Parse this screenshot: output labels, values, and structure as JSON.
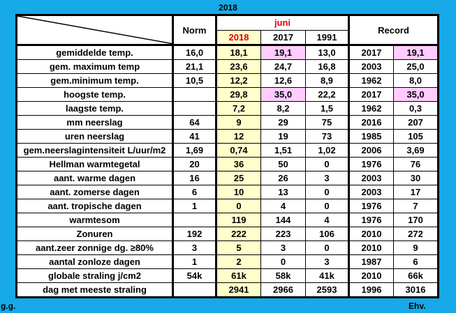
{
  "title": "2018",
  "header": {
    "norm": "Norm",
    "month": "juni",
    "years": [
      "2018",
      "2017",
      "1991"
    ],
    "record": "Record"
  },
  "rows": [
    {
      "label": "gemiddelde temp.",
      "norm": "16,0",
      "y2018": "18,1",
      "y2017": "19,1",
      "y1991": "13,0",
      "rec_year": "2017",
      "rec_val": "19,1"
    },
    {
      "label": "gem. maximum temp",
      "norm": "21,1",
      "y2018": "23,6",
      "y2017": "24,7",
      "y1991": "16,8",
      "rec_year": "2003",
      "rec_val": "25,0"
    },
    {
      "label": "gem.minimum temp.",
      "norm": "10,5",
      "y2018": "12,2",
      "y2017": "12,6",
      "y1991": "8,9",
      "rec_year": "1962",
      "rec_val": "8,0"
    },
    {
      "label": "hoogste temp.",
      "norm": "",
      "y2018": "29,8",
      "y2017": "35,0",
      "y1991": "22,2",
      "rec_year": "2017",
      "rec_val": "35,0"
    },
    {
      "label": "laagste temp.",
      "norm": "",
      "y2018": "7,2",
      "y2017": "8,2",
      "y1991": "1,5",
      "rec_year": "1962",
      "rec_val": "0,3"
    },
    {
      "label": "mm neerslag",
      "norm": "64",
      "y2018": "9",
      "y2017": "29",
      "y1991": "75",
      "rec_year": "2016",
      "rec_val": "207"
    },
    {
      "label": "uren neerslag",
      "norm": "41",
      "y2018": "12",
      "y2017": "19",
      "y1991": "73",
      "rec_year": "1985",
      "rec_val": "105"
    },
    {
      "label": "gem.neerslagintensiteit L/uur/m2",
      "norm": "1,69",
      "y2018": "0,74",
      "y2017": "1,51",
      "y1991": "1,02",
      "rec_year": "2006",
      "rec_val": "3,69"
    },
    {
      "label": "Hellman warmtegetal",
      "norm": "20",
      "y2018": "36",
      "y2017": "50",
      "y1991": "0",
      "rec_year": "1976",
      "rec_val": "76"
    },
    {
      "label": "aant. warme dagen",
      "norm": "16",
      "y2018": "25",
      "y2017": "26",
      "y1991": "3",
      "rec_year": "2003",
      "rec_val": "30"
    },
    {
      "label": "aant. zomerse dagen",
      "norm": "6",
      "y2018": "10",
      "y2017": "13",
      "y1991": "0",
      "rec_year": "2003",
      "rec_val": "17"
    },
    {
      "label": "aant. tropische dagen",
      "norm": "1",
      "y2018": "0",
      "y2017": "4",
      "y1991": "0",
      "rec_year": "1976",
      "rec_val": "7"
    },
    {
      "label": "warmtesom",
      "norm": "",
      "y2018": "119",
      "y2017": "144",
      "y1991": "4",
      "rec_year": "1976",
      "rec_val": "170"
    },
    {
      "label": "Zonuren",
      "norm": "192",
      "y2018": "222",
      "y2017": "223",
      "y1991": "106",
      "rec_year": "2010",
      "rec_val": "272"
    },
    {
      "label": "aant.zeer zonnige dg. ≥80%",
      "norm": "3",
      "y2018": "5",
      "y2017": "3",
      "y1991": "0",
      "rec_year": "2010",
      "rec_val": "9"
    },
    {
      "label": "aantal zonloze dagen",
      "norm": "1",
      "y2018": "2",
      "y2017": "0",
      "y1991": "3",
      "rec_year": "1987",
      "rec_val": "6"
    },
    {
      "label": "globale straling j/cm2",
      "norm": "54k",
      "y2018": "61k",
      "y2017": "58k",
      "y1991": "41k",
      "rec_year": "2010",
      "rec_val": "66k"
    },
    {
      "label": "dag met meeste straling",
      "norm": "",
      "y2018": "2941",
      "y2017": "2966",
      "y1991": "2593",
      "rec_year": "1996",
      "rec_val": "3016"
    }
  ],
  "footer": {
    "left": "g.g.",
    "right": "Ehv."
  },
  "colors": {
    "background": "#17a9e8",
    "highlight_2018": "#ffffcc",
    "highlight_record": "#ffccff",
    "month_text": "#e00000"
  }
}
